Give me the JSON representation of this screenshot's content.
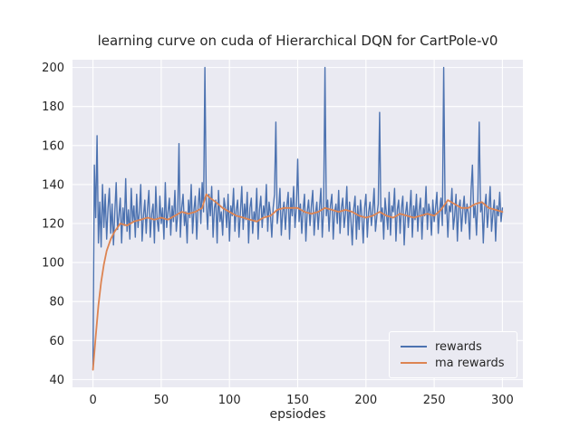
{
  "chart_data": {
    "type": "line",
    "title": "learning curve on cuda of Hierarchical DQN for CartPole-v0",
    "xlabel": "epsiodes",
    "ylabel": "",
    "xticks": [
      0,
      50,
      100,
      150,
      200,
      250,
      300
    ],
    "yticks": [
      40,
      60,
      80,
      100,
      120,
      140,
      160,
      180,
      200
    ],
    "xlim": [
      -15,
      315
    ],
    "ylim": [
      36,
      204
    ],
    "grid": true,
    "background": "#eaeaf2",
    "gridline_color": "#ffffff",
    "legend_position": "lower right",
    "series": [
      {
        "name": "rewards",
        "color": "#4c72b0",
        "x_start": 0,
        "x_step": 1,
        "values": [
          45,
          150,
          123,
          165,
          110,
          131,
          108,
          140,
          118,
          135,
          112,
          128,
          138,
          115,
          130,
          109,
          126,
          141,
          117,
          124,
          133,
          110,
          128,
          119,
          143,
          116,
          127,
          112,
          138,
          121,
          129,
          113,
          135,
          118,
          126,
          140,
          111,
          124,
          132,
          115,
          128,
          137,
          113,
          125,
          130,
          110,
          139,
          122,
          116,
          134,
          120,
          128,
          112,
          141,
          118,
          126,
          133,
          114,
          129,
          121,
          137,
          116,
          124,
          161,
          113,
          128,
          135,
          119,
          126,
          110,
          132,
          123,
          140,
          115,
          127,
          134,
          112,
          129,
          138,
          120,
          141,
          126,
          200,
          131,
          117,
          135,
          124,
          139,
          113,
          128,
          132,
          110,
          137,
          121,
          126,
          114,
          133,
          128,
          118,
          135,
          111,
          129,
          124,
          138,
          116,
          127,
          132,
          113,
          125,
          139,
          117,
          130,
          122,
          136,
          110,
          128,
          133,
          115,
          126,
          121,
          138,
          112,
          127,
          134,
          118,
          129,
          124,
          140,
          116,
          131,
          125,
          113,
          128,
          135,
          172,
          120,
          127,
          138,
          114,
          126,
          131,
          117,
          129,
          136,
          112,
          133,
          124,
          139,
          118,
          128,
          153,
          121,
          130,
          115,
          127,
          135,
          111,
          126,
          132,
          119,
          129,
          137,
          114,
          125,
          131,
          117,
          128,
          138,
          113,
          127,
          200,
          124,
          132,
          116,
          129,
          135,
          112,
          126,
          130,
          120,
          137,
          115,
          128,
          133,
          118,
          125,
          139,
          114,
          131,
          122,
          109,
          127,
          134,
          112,
          129,
          117,
          132,
          124,
          110,
          128,
          135,
          113,
          126,
          131,
          119,
          127,
          138,
          116,
          124,
          130,
          177,
          121,
          128,
          112,
          133,
          125,
          117,
          136,
          114,
          129,
          126,
          138,
          111,
          127,
          132,
          115,
          128,
          134,
          109,
          125,
          131,
          118,
          126,
          137,
          113,
          129,
          122,
          135,
          116,
          127,
          133,
          112,
          128,
          124,
          139,
          117,
          130,
          126,
          114,
          132,
          121,
          128,
          136,
          115,
          127,
          133,
          119,
          200,
          125,
          131,
          113,
          129,
          126,
          138,
          117,
          124,
          135,
          111,
          128,
          132,
          116,
          127,
          134,
          120,
          130,
          125,
          112,
          137,
          150,
          123,
          129,
          114,
          133,
          172,
          126,
          131,
          110,
          128,
          135,
          118,
          127,
          139,
          116,
          125,
          132,
          111,
          129,
          124,
          136,
          121,
          128
        ]
      },
      {
        "name": "ma rewards",
        "color": "#dd8452",
        "x": [
          0,
          2,
          4,
          6,
          8,
          10,
          13,
          16,
          20,
          25,
          30,
          35,
          40,
          45,
          50,
          55,
          60,
          65,
          70,
          75,
          80,
          83,
          86,
          90,
          95,
          100,
          105,
          110,
          115,
          120,
          125,
          130,
          135,
          140,
          145,
          150,
          155,
          160,
          165,
          170,
          175,
          180,
          185,
          190,
          195,
          200,
          205,
          210,
          215,
          220,
          225,
          230,
          235,
          240,
          245,
          250,
          255,
          260,
          265,
          270,
          275,
          280,
          285,
          290,
          295,
          300
        ],
        "y": [
          45,
          62,
          78,
          90,
          99,
          106,
          112,
          116,
          120,
          119,
          121,
          122,
          123,
          122,
          123,
          122,
          124,
          126,
          125,
          126,
          128,
          135,
          133,
          131,
          128,
          126,
          124,
          123,
          122,
          121,
          123,
          124,
          127,
          128,
          128,
          128,
          126,
          125,
          126,
          128,
          127,
          126,
          127,
          126,
          124,
          123,
          124,
          126,
          124,
          123,
          125,
          124,
          123,
          124,
          125,
          124,
          127,
          132,
          130,
          128,
          128,
          130,
          131,
          128,
          127,
          126
        ]
      }
    ]
  }
}
